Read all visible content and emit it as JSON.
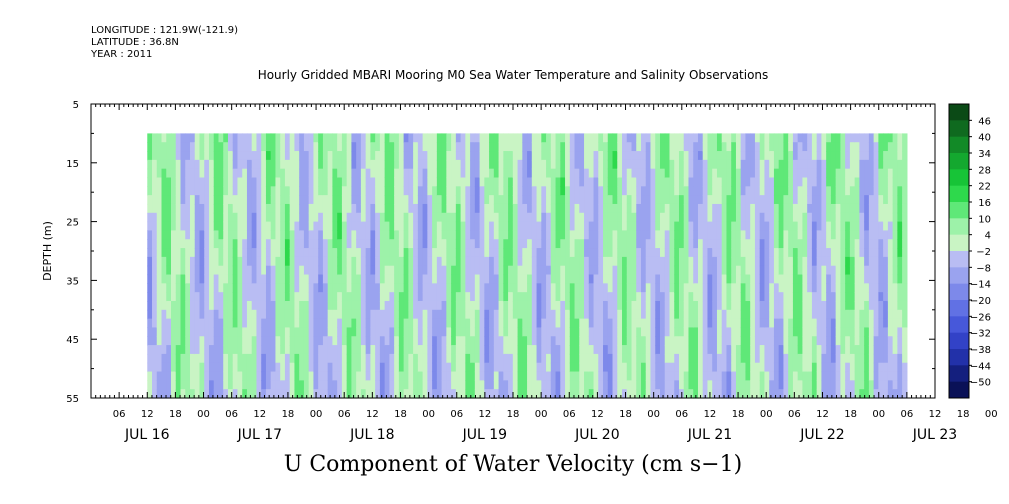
{
  "header": {
    "longitude": "LONGITUDE : 121.9W(-121.9)",
    "latitude": "LATITUDE : 36.8N",
    "year": "YEAR : 2011"
  },
  "chart_data": {
    "type": "heatmap",
    "title": "Hourly Gridded MBARI Mooring M0 Sea Water Temperature and Salinity Observations",
    "xlabel": "U Component of Water Velocity (cm s−1)",
    "ylabel": "DEPTH (m)",
    "y_ticks": [
      "5",
      "15",
      "25",
      "35",
      "45",
      "55"
    ],
    "ylim": [
      5,
      55
    ],
    "data_depth_range": [
      10,
      55
    ],
    "x_hour_ticks": [
      "06",
      "12",
      "18",
      "00",
      "06",
      "12",
      "18",
      "00",
      "06",
      "12",
      "18",
      "00",
      "06",
      "12",
      "18",
      "00",
      "06",
      "12",
      "18",
      "00",
      "06",
      "12",
      "18",
      "00",
      "06",
      "12",
      "18",
      "00",
      "06",
      "12",
      "18",
      "00"
    ],
    "x_date_labels": [
      "JUL 16",
      "JUL 17",
      "JUL 18",
      "JUL 19",
      "JUL 20",
      "JUL 21",
      "JUL 22",
      "JUL 23"
    ],
    "time_start": "JUL 16 12:00",
    "time_end": "JUL 23 06:00",
    "colorbar": {
      "levels": [
        "46",
        "40",
        "34",
        "28",
        "22",
        "16",
        "10",
        "4",
        "−2",
        "−8",
        "−14",
        "−20",
        "−26",
        "−32",
        "−38",
        "−44",
        "−50"
      ],
      "colors": [
        "#0b4a16",
        "#0f6a1f",
        "#128a27",
        "#14a82f",
        "#17c437",
        "#2ed94c",
        "#5fe878",
        "#9df2a9",
        "#c9f4c4",
        "#b9bdf3",
        "#9aa3ef",
        "#7d89ea",
        "#6171e4",
        "#4758da",
        "#3242c7",
        "#2231a9",
        "#141f7e",
        "#0a1157"
      ]
    },
    "dominant_values": "mostly between −14 and +22 cm/s; green bands (eastward flow) alternate with blue bands (westward flow)"
  }
}
